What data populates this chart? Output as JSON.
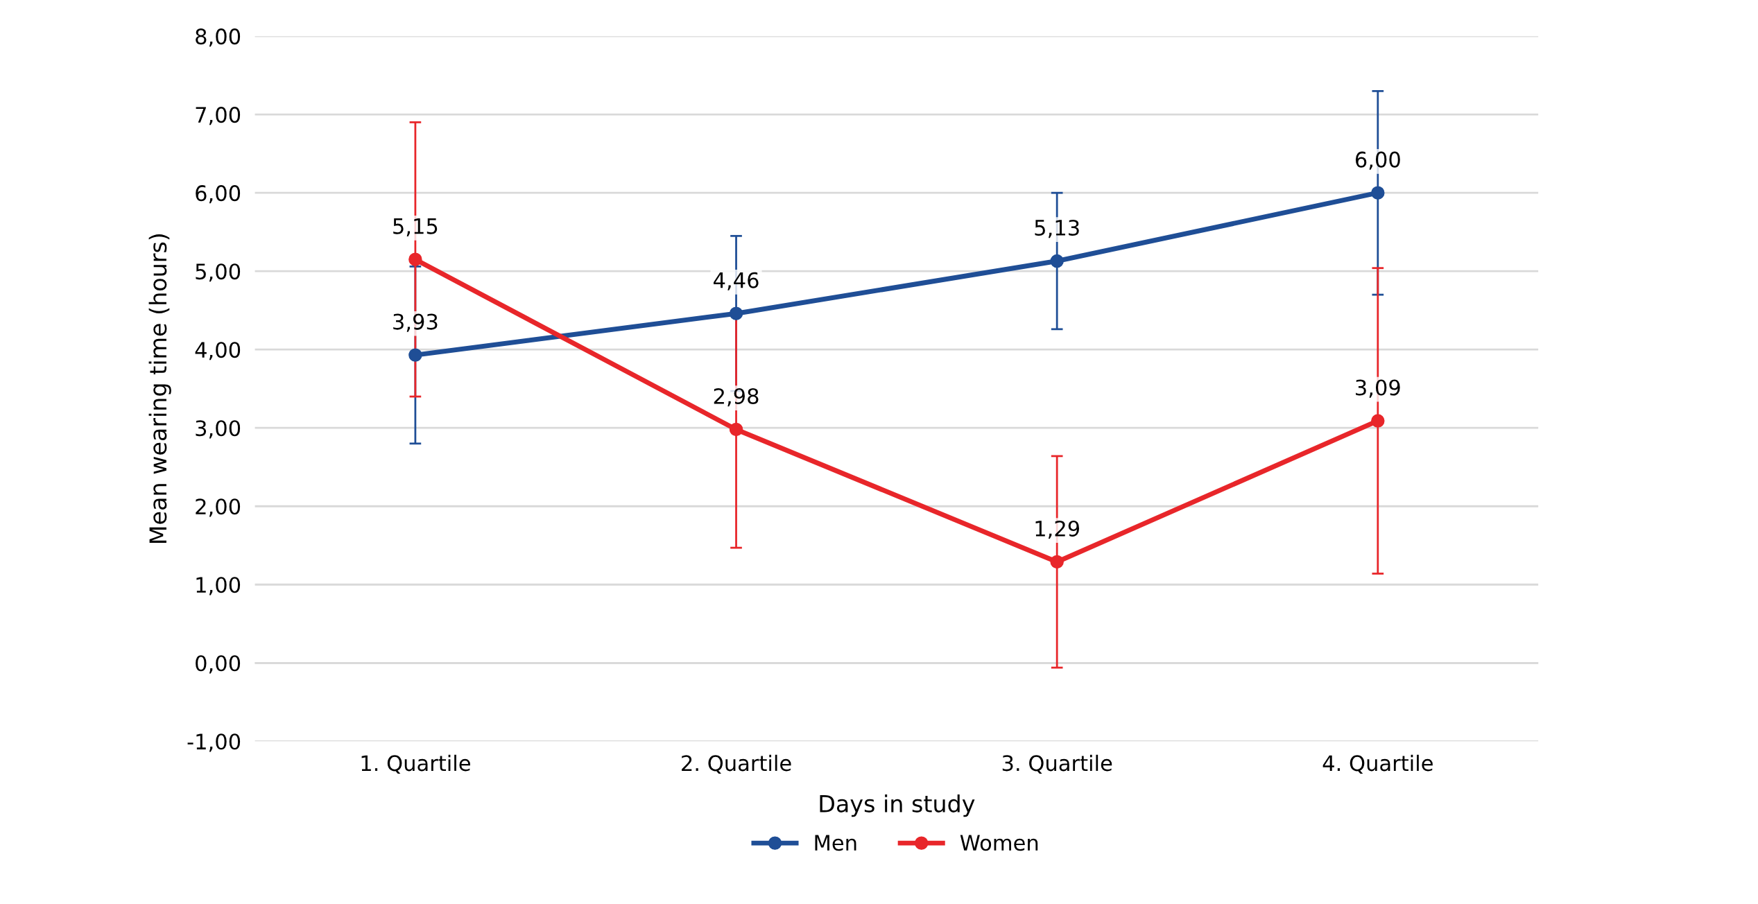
{
  "chart_data": {
    "type": "line",
    "xlabel": "Days in study",
    "ylabel": "Mean wearing time (hours)",
    "categories": [
      "1. Quartile",
      "2. Quartile",
      "3. Quartile",
      "4. Quartile"
    ],
    "series": [
      {
        "name": "Men",
        "color": "#1f4e96",
        "values": [
          3.93,
          4.46,
          5.13,
          6.0
        ],
        "errors": [
          1.13,
          0.99,
          0.87,
          1.3
        ],
        "value_labels": [
          "3,93",
          "4,46",
          "5,13",
          "6,00"
        ]
      },
      {
        "name": "Women",
        "color": "#e8262a",
        "values": [
          5.15,
          2.98,
          1.29,
          3.09
        ],
        "errors": [
          1.75,
          1.51,
          1.35,
          1.95
        ],
        "value_labels": [
          "5,15",
          "2,98",
          "1,29",
          "3,09"
        ]
      }
    ],
    "ylim": [
      -1,
      8
    ],
    "yticks": [
      {
        "value": -1,
        "label": "-1,00"
      },
      {
        "value": 0,
        "label": "0,00"
      },
      {
        "value": 1,
        "label": "1,00"
      },
      {
        "value": 2,
        "label": "2,00"
      },
      {
        "value": 3,
        "label": "3,00"
      },
      {
        "value": 4,
        "label": "4,00"
      },
      {
        "value": 5,
        "label": "5,00"
      },
      {
        "value": 6,
        "label": "6,00"
      },
      {
        "value": 7,
        "label": "7,00"
      },
      {
        "value": 8,
        "label": "8,00"
      }
    ],
    "grid": "y",
    "legend": "bottom",
    "marker": "circle",
    "line_style": "solid"
  }
}
